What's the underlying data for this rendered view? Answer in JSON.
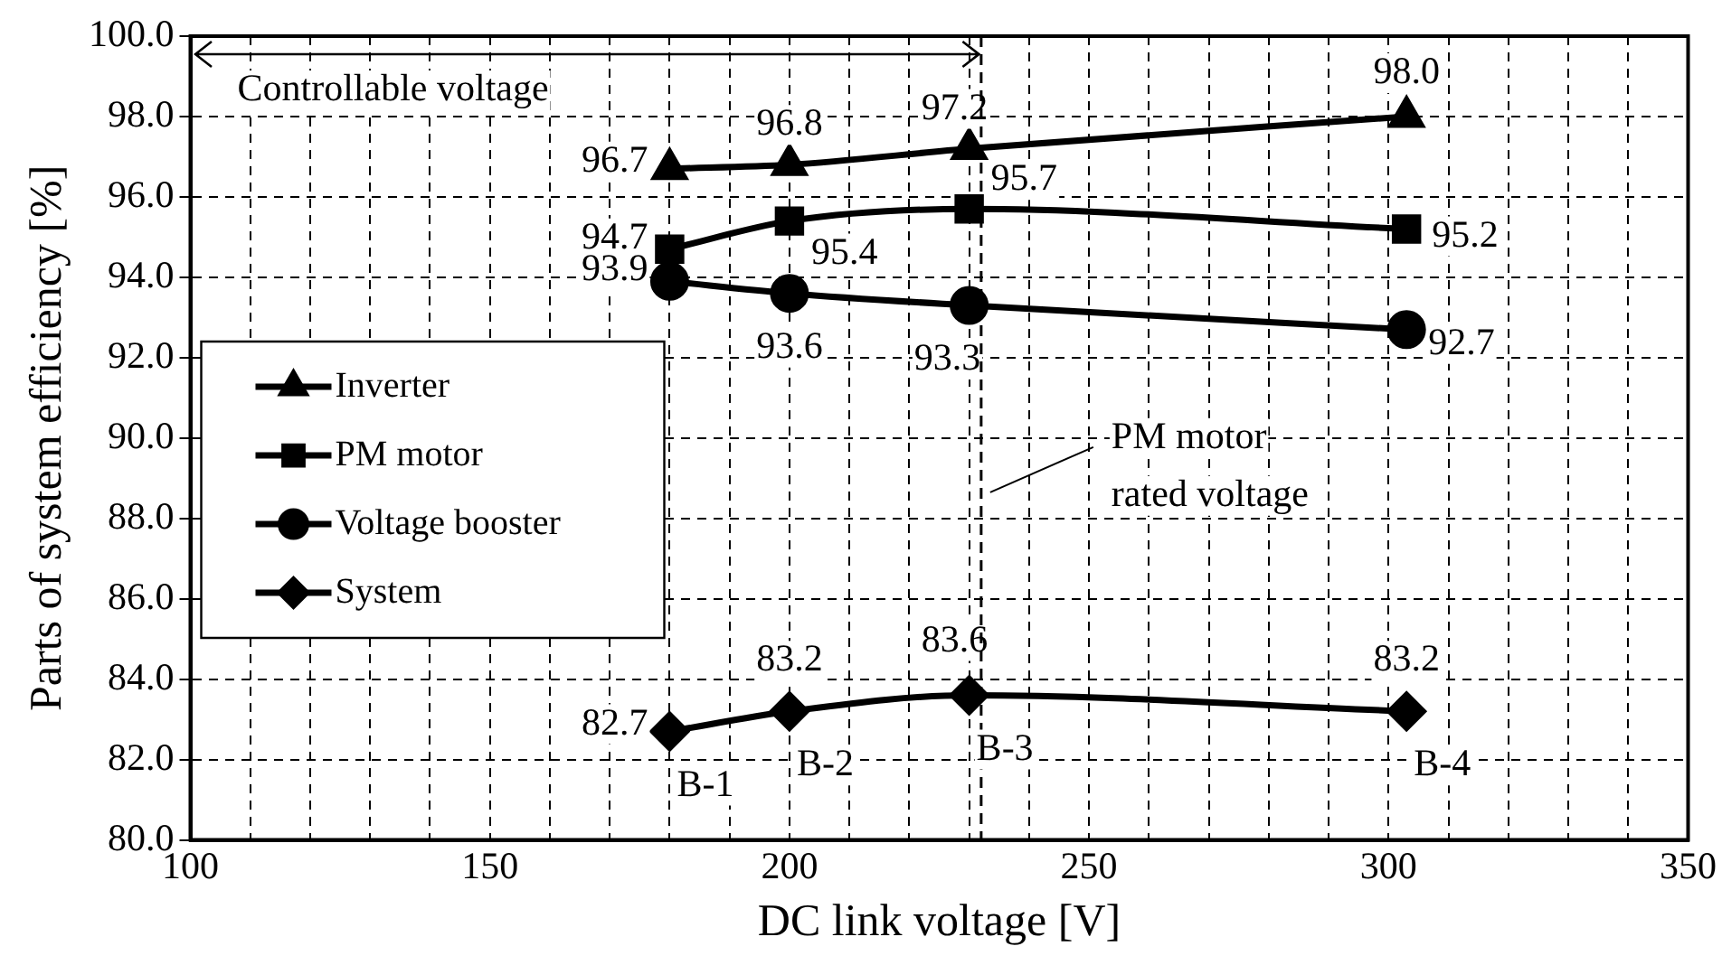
{
  "chart_data": {
    "type": "line",
    "xlabel": "DC link voltage [V]",
    "ylabel": "Parts of system efficiency [%]",
    "x": [
      180,
      200,
      230,
      303
    ],
    "series": [
      {
        "name": "Inverter",
        "color": "#000000",
        "marker": "triangle",
        "values": [
          96.7,
          96.8,
          97.2,
          98.0
        ],
        "value_labels": [
          "96.7",
          "96.8",
          "97.2",
          "98.0"
        ]
      },
      {
        "name": "PM motor",
        "color": "#000000",
        "marker": "square",
        "values": [
          94.7,
          95.4,
          95.7,
          95.2
        ],
        "value_labels": [
          "94.7",
          "95.4",
          "95.7",
          "95.2"
        ]
      },
      {
        "name": "Voltage booster",
        "color": "#000000",
        "marker": "circle",
        "values": [
          93.9,
          93.6,
          93.3,
          92.7
        ],
        "value_labels": [
          "93.9",
          "93.6",
          "93.3",
          "92.7"
        ]
      },
      {
        "name": "System",
        "color": "#000000",
        "marker": "diamond",
        "values": [
          82.7,
          83.2,
          83.6,
          83.2
        ],
        "value_labels": [
          "82.7",
          "83.2",
          "83.6",
          "83.2"
        ]
      }
    ],
    "xlim": [
      100,
      350
    ],
    "xticks": [
      100,
      {
        "value": 110,
        "label": null
      },
      {
        "value": 120,
        "label": null
      },
      {
        "value": 130,
        "label": null
      },
      {
        "value": 140,
        "label": null
      },
      150,
      {
        "value": 160,
        "label": null
      },
      {
        "value": 170,
        "label": null
      },
      {
        "value": 180,
        "label": null
      },
      {
        "value": 190,
        "label": null
      },
      200,
      {
        "value": 210,
        "label": null
      },
      {
        "value": 220,
        "label": null
      },
      {
        "value": 230,
        "label": null
      },
      {
        "value": 240,
        "label": null
      },
      250,
      {
        "value": 260,
        "label": null
      },
      {
        "value": 270,
        "label": null
      },
      {
        "value": 280,
        "label": null
      },
      {
        "value": 290,
        "label": null
      },
      300,
      {
        "value": 310,
        "label": null
      },
      {
        "value": 320,
        "label": null
      },
      {
        "value": 330,
        "label": null
      },
      {
        "value": 340,
        "label": null
      },
      350
    ],
    "ylim": [
      80,
      100
    ],
    "yticks": [
      {
        "value": 80,
        "label": "80.0"
      },
      {
        "value": 82,
        "label": "82.0"
      },
      {
        "value": 84,
        "label": "84.0"
      },
      {
        "value": 86,
        "label": "86.0"
      },
      {
        "value": 88,
        "label": "88.0"
      },
      {
        "value": 90,
        "label": "90.0"
      },
      {
        "value": 92,
        "label": "92.0"
      },
      {
        "value": 94,
        "label": "94.0"
      },
      {
        "value": 96,
        "label": "96.0"
      },
      {
        "value": 98,
        "label": "98.0"
      },
      {
        "value": 100,
        "label": "100.0"
      }
    ],
    "ref_lines": [
      {
        "axis": "x",
        "value": 232,
        "label": "PM motor rated voltage",
        "color": "#000000",
        "line_style": "dashed"
      }
    ],
    "annotations": [
      "Controllable voltage",
      {
        "text": "B-1",
        "x": 180,
        "y": 82.7
      },
      {
        "text": "B-2",
        "x": 200,
        "y": 83.2
      },
      {
        "text": "B-3",
        "x": 230,
        "y": 83.6
      },
      {
        "text": "B-4",
        "x": 303,
        "y": 83.2
      }
    ],
    "grid": true,
    "legend": "center left",
    "line_style": "solid"
  }
}
